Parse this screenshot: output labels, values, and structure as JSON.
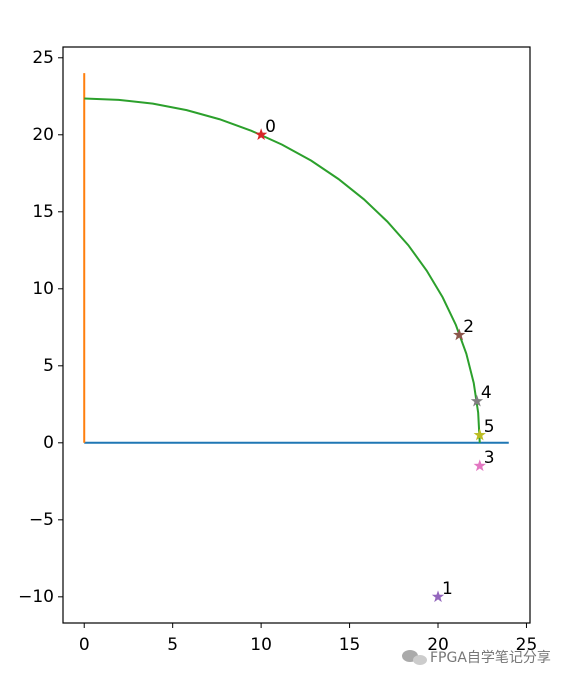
{
  "chart_data": {
    "type": "line",
    "xlim": [
      -1.2,
      25.2
    ],
    "ylim": [
      -11.7,
      25.7
    ],
    "xticks": [
      0,
      5,
      10,
      15,
      20,
      25
    ],
    "yticks": [
      {
        "value": -10,
        "label": "−10"
      },
      {
        "value": -5,
        "label": "−5"
      },
      0,
      5,
      10,
      15,
      20,
      25
    ],
    "series": [
      {
        "color": "#1f77b4",
        "x": [
          0,
          24
        ],
        "values": [
          0,
          0
        ]
      },
      {
        "color": "#ff7f0e",
        "x": [
          0,
          0
        ],
        "values": [
          0,
          24
        ]
      },
      {
        "color": "#2ca02c",
        "x": [
          0,
          1.95,
          3.88,
          5.79,
          7.65,
          9.45,
          11.18,
          12.83,
          14.37,
          15.81,
          17.13,
          18.32,
          19.36,
          20.26,
          21.01,
          21.6,
          22.02,
          22.27,
          22.36
        ],
        "values": [
          22.36,
          22.27,
          22.02,
          21.6,
          21.01,
          20.26,
          19.36,
          18.32,
          17.13,
          15.81,
          14.37,
          12.83,
          11.18,
          9.45,
          7.65,
          5.79,
          3.88,
          1.95,
          0
        ]
      }
    ],
    "points": {
      "x": [
        10,
        20,
        21.2,
        22.36,
        22.2,
        22.36
      ],
      "values": [
        20,
        -10,
        7,
        -1.5,
        2.7,
        0.5
      ],
      "labels": [
        "0",
        "1",
        "2",
        "3",
        "4",
        "5"
      ],
      "colors": [
        "#d62728",
        "#9467bd",
        "#8c564b",
        "#e377c2",
        "#7f7f7f",
        "#bcbd22"
      ]
    },
    "watermark": "FPGA自学笔记分享"
  }
}
